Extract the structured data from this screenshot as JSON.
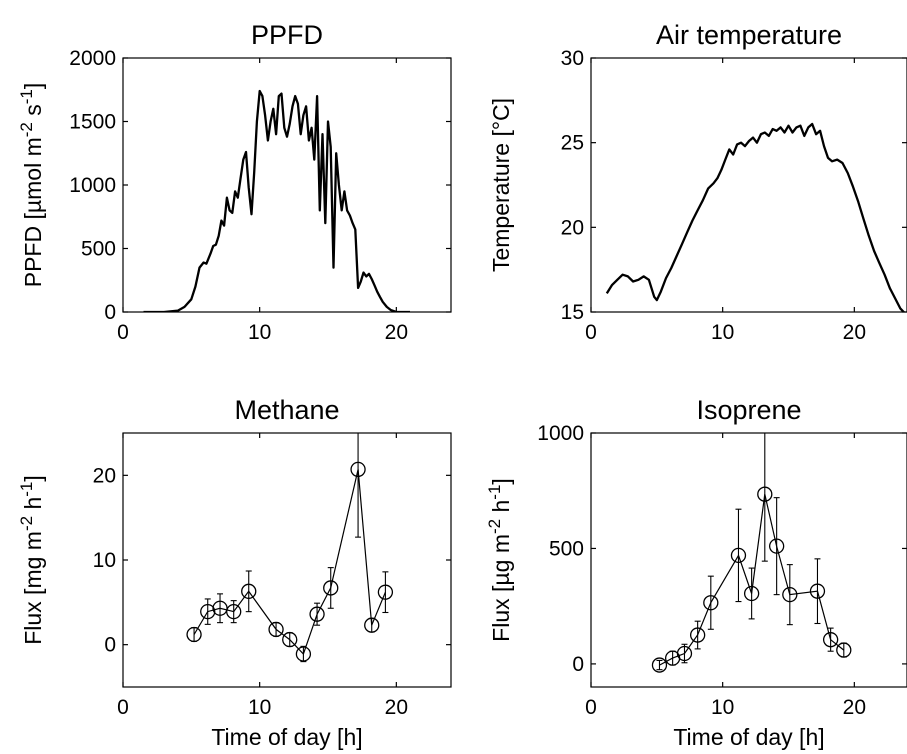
{
  "chart_data": [
    {
      "type": "line",
      "title": "PPFD",
      "xlabel": "",
      "ylabel": "PPFD [µmol m^-2 s^-1]",
      "xlim": [
        0,
        24
      ],
      "ylim": [
        0,
        2000
      ],
      "xticks": [
        0,
        10,
        20
      ],
      "yticks": [
        0,
        500,
        1000,
        1500,
        2000
      ],
      "series": [
        {
          "x": [
            1.5,
            3,
            4,
            4.5,
            5,
            5.3,
            5.6,
            5.9,
            6.1,
            6.4,
            6.6,
            6.8,
            7,
            7.2,
            7.4,
            7.6,
            7.8,
            8,
            8.2,
            8.4,
            8.6,
            8.8,
            9,
            9.2,
            9.4,
            9.6,
            9.8,
            10,
            10.2,
            10.4,
            10.6,
            10.8,
            11,
            11.2,
            11.4,
            11.6,
            11.8,
            12,
            12.2,
            12.4,
            12.6,
            12.8,
            13,
            13.2,
            13.4,
            13.6,
            13.8,
            14,
            14.2,
            14.4,
            14.6,
            14.8,
            15,
            15.2,
            15.4,
            15.6,
            15.8,
            16,
            16.2,
            16.4,
            16.6,
            16.8,
            17,
            17.2,
            17.4,
            17.6,
            17.8,
            18,
            18.2,
            18.4,
            18.6,
            18.8,
            19,
            19.3,
            19.6,
            20,
            20.3,
            20.6,
            21
          ],
          "y": [
            0,
            0,
            10,
            40,
            100,
            200,
            350,
            390,
            380,
            460,
            520,
            530,
            600,
            720,
            680,
            900,
            800,
            780,
            950,
            900,
            1050,
            1200,
            1260,
            980,
            770,
            1100,
            1500,
            1740,
            1700,
            1550,
            1350,
            1500,
            1600,
            1400,
            1700,
            1720,
            1450,
            1380,
            1480,
            1620,
            1700,
            1640,
            1400,
            1550,
            1620,
            1350,
            1450,
            1200,
            1700,
            800,
            1400,
            700,
            1500,
            1300,
            350,
            1250,
            1000,
            800,
            950,
            800,
            760,
            700,
            650,
            190,
            240,
            310,
            280,
            300,
            260,
            210,
            160,
            120,
            80,
            40,
            15,
            0,
            0,
            0,
            0
          ]
        }
      ]
    },
    {
      "type": "line",
      "title": "Air temperature",
      "xlabel": "",
      "ylabel": "Temperature [°C]",
      "xlim": [
        0,
        24
      ],
      "ylim": [
        15,
        30
      ],
      "xticks": [
        0,
        10,
        20
      ],
      "yticks": [
        15,
        20,
        25,
        30
      ],
      "series": [
        {
          "x": [
            1.2,
            1.6,
            2.0,
            2.4,
            2.8,
            3.2,
            3.6,
            4.0,
            4.4,
            4.8,
            5.0,
            5.3,
            5.7,
            6.1,
            6.5,
            6.9,
            7.3,
            7.7,
            8.1,
            8.5,
            8.9,
            9.3,
            9.6,
            9.9,
            10.2,
            10.5,
            10.8,
            11.1,
            11.4,
            11.7,
            12.0,
            12.3,
            12.6,
            12.9,
            13.2,
            13.5,
            13.8,
            14.1,
            14.4,
            14.7,
            15.0,
            15.3,
            15.6,
            15.9,
            16.2,
            16.5,
            16.8,
            17.1,
            17.4,
            17.7,
            18.0,
            18.3,
            18.7,
            19.1,
            19.5,
            19.9,
            20.3,
            20.7,
            21.1,
            21.5,
            21.9,
            22.3,
            22.7,
            23.1,
            23.5,
            24.0
          ],
          "y": [
            16.1,
            16.6,
            16.9,
            17.2,
            17.1,
            16.8,
            16.9,
            17.1,
            16.9,
            15.9,
            15.7,
            16.2,
            17.0,
            17.6,
            18.3,
            19.0,
            19.7,
            20.4,
            21.0,
            21.6,
            22.3,
            22.6,
            22.9,
            23.4,
            24.0,
            24.6,
            24.3,
            24.9,
            25.0,
            24.8,
            25.1,
            25.3,
            25.0,
            25.5,
            25.6,
            25.4,
            25.8,
            25.7,
            25.9,
            25.6,
            26.0,
            25.6,
            25.9,
            26.0,
            25.4,
            25.9,
            26.1,
            25.5,
            25.7,
            24.8,
            24.1,
            23.9,
            24.0,
            23.8,
            23.2,
            22.4,
            21.5,
            20.5,
            19.5,
            18.6,
            17.9,
            17.2,
            16.4,
            15.8,
            15.2,
            14.8
          ]
        }
      ]
    },
    {
      "type": "scatter",
      "title": "Methane",
      "xlabel": "Time of day [h]",
      "ylabel": "Flux [mg m^-2 h^-1]",
      "xlim": [
        0,
        24
      ],
      "ylim": [
        -5,
        25
      ],
      "xticks": [
        0,
        10,
        20
      ],
      "yticks": [
        0,
        10,
        20
      ],
      "series": [
        {
          "x": [
            5.2,
            6.2,
            7.1,
            8.1,
            9.2,
            11.2,
            12.2,
            13.2,
            14.2,
            15.2,
            17.2,
            18.2,
            19.2
          ],
          "y": [
            1.2,
            3.9,
            4.3,
            3.9,
            6.3,
            1.8,
            0.6,
            -1.1,
            3.6,
            6.7,
            20.7,
            2.3,
            6.2
          ],
          "err": [
            0.8,
            1.5,
            1.7,
            1.3,
            2.4,
            0.8,
            0.8,
            0.9,
            1.3,
            2.4,
            8.0,
            0.8,
            2.4
          ]
        }
      ]
    },
    {
      "type": "scatter",
      "title": "Isoprene",
      "xlabel": "Time of day [h]",
      "ylabel": "Flux [µg m^-2 h^-1]",
      "xlim": [
        0,
        24
      ],
      "ylim": [
        -100,
        1000
      ],
      "xticks": [
        0,
        10,
        20
      ],
      "yticks": [
        0,
        500,
        1000
      ],
      "series": [
        {
          "x": [
            5.2,
            6.2,
            7.1,
            8.1,
            9.1,
            11.2,
            12.2,
            13.2,
            14.1,
            15.1,
            17.2,
            18.2,
            19.2
          ],
          "y": [
            -5,
            25,
            45,
            125,
            265,
            470,
            305,
            735,
            510,
            300,
            315,
            105,
            60
          ],
          "err": [
            20,
            30,
            40,
            60,
            115,
            200,
            110,
            290,
            210,
            130,
            140,
            50,
            30
          ]
        }
      ]
    }
  ]
}
